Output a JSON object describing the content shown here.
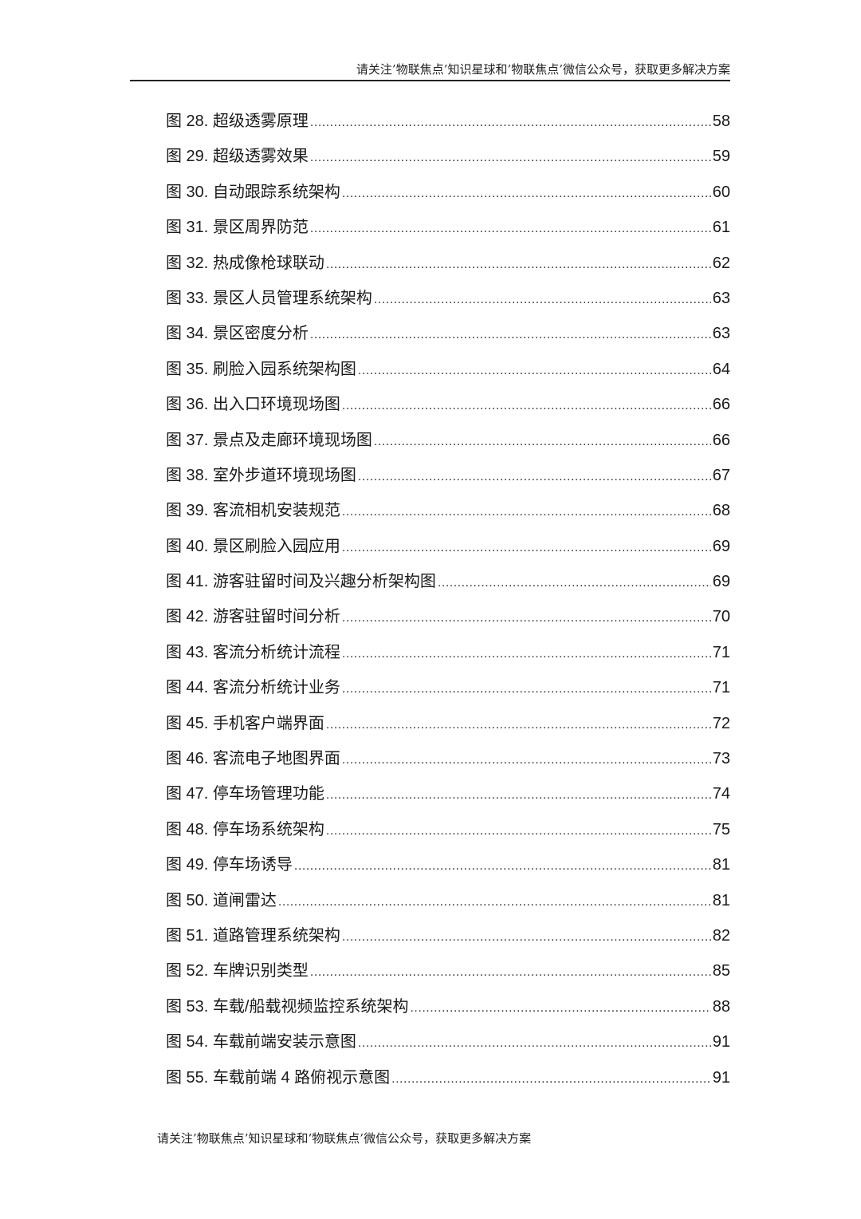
{
  "header": {
    "text": "请关注’物联焦点’知识星球和’物联焦点’微信公众号，获取更多解决方案"
  },
  "toc": [
    {
      "label": "图 28. 超级透雾原理",
      "page": "58"
    },
    {
      "label": "图 29. 超级透雾效果",
      "page": "59"
    },
    {
      "label": "图 30. 自动跟踪系统架构",
      "page": "60"
    },
    {
      "label": "图 31. 景区周界防范",
      "page": "61"
    },
    {
      "label": "图 32. 热成像枪球联动",
      "page": "62"
    },
    {
      "label": "图 33. 景区人员管理系统架构",
      "page": "63"
    },
    {
      "label": "图 34. 景区密度分析",
      "page": "63"
    },
    {
      "label": "图 35. 刷脸入园系统架构图",
      "page": "64"
    },
    {
      "label": "图 36. 出入口环境现场图",
      "page": "66"
    },
    {
      "label": "图 37. 景点及走廊环境现场图",
      "page": "66"
    },
    {
      "label": "图 38. 室外步道环境现场图",
      "page": "67"
    },
    {
      "label": "图 39. 客流相机安装规范",
      "page": "68"
    },
    {
      "label": "图 40. 景区刷脸入园应用",
      "page": "69"
    },
    {
      "label": "图 41. 游客驻留时间及兴趣分析架构图",
      "page": "69"
    },
    {
      "label": "图 42. 游客驻留时间分析",
      "page": "70"
    },
    {
      "label": "图 43. 客流分析统计流程",
      "page": "71"
    },
    {
      "label": "图 44. 客流分析统计业务",
      "page": "71"
    },
    {
      "label": "图 45. 手机客户端界面",
      "page": "72"
    },
    {
      "label": "图 46. 客流电子地图界面",
      "page": "73"
    },
    {
      "label": "图 47. 停车场管理功能",
      "page": "74"
    },
    {
      "label": "图 48. 停车场系统架构",
      "page": "75"
    },
    {
      "label": "图 49. 停车场诱导",
      "page": "81"
    },
    {
      "label": "图 50. 道闸雷达",
      "page": "81"
    },
    {
      "label": "图 51. 道路管理系统架构",
      "page": "82"
    },
    {
      "label": "图 52. 车牌识别类型",
      "page": "85"
    },
    {
      "label": "图 53. 车载/船载视频监控系统架构",
      "page": "88"
    },
    {
      "label": "图 54. 车载前端安装示意图",
      "page": "91"
    },
    {
      "label": "图 55. 车载前端 4 路俯视示意图",
      "page": "91"
    }
  ],
  "footer": {
    "text": "请关注’物联焦点’知识星球和’物联焦点’微信公众号，获取更多解决方案"
  }
}
